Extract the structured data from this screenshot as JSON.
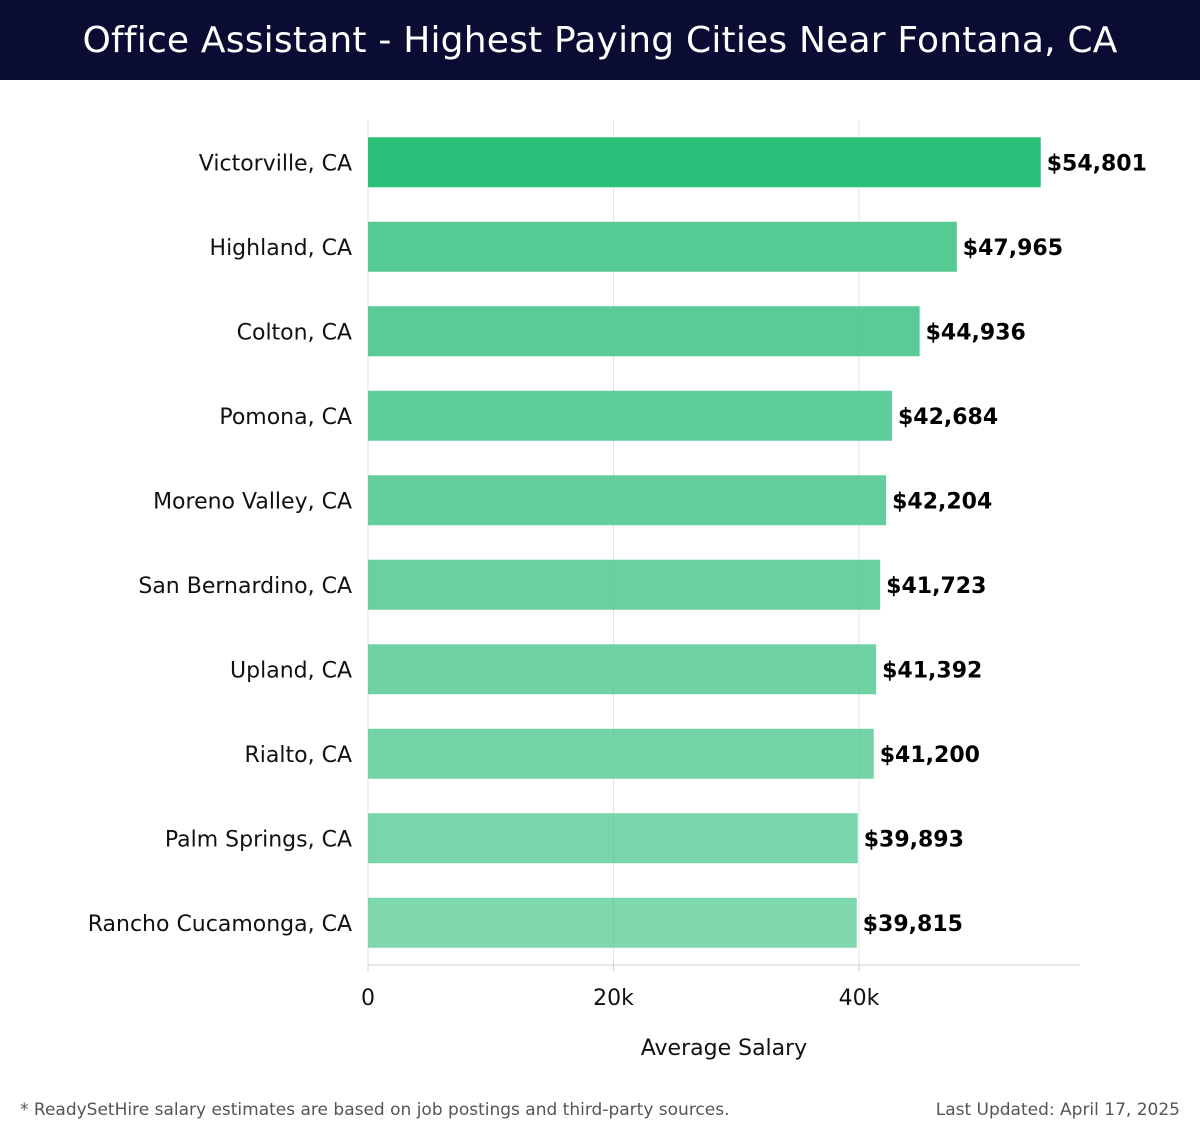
{
  "header": {
    "title": "Office Assistant - Highest Paying Cities Near Fontana, CA"
  },
  "chart_data": {
    "type": "bar",
    "orientation": "horizontal",
    "categories": [
      "Victorville, CA",
      "Highland, CA",
      "Colton, CA",
      "Pomona, CA",
      "Moreno Valley, CA",
      "San Bernardino, CA",
      "Upland, CA",
      "Rialto, CA",
      "Palm Springs, CA",
      "Rancho Cucamonga, CA"
    ],
    "values": [
      54801,
      47965,
      44936,
      42684,
      42204,
      41723,
      41392,
      41200,
      39893,
      39815
    ],
    "value_labels": [
      "$54,801",
      "$47,965",
      "$44,936",
      "$42,684",
      "$42,204",
      "$41,723",
      "$41,392",
      "$41,200",
      "$39,893",
      "$39,815"
    ],
    "xlabel": "Average Salary",
    "ylabel": "",
    "xlim": [
      0,
      58000
    ],
    "xticks": [
      0,
      20000,
      40000
    ],
    "xtick_labels": [
      "0",
      "20k",
      "40k"
    ],
    "grid": true,
    "colors": {
      "top_bar": "#2bbf79",
      "bar": "#4fc890",
      "gridline": "#e2e2e2",
      "axis": "#cccccc"
    }
  },
  "footer": {
    "note": "* ReadySetHire salary estimates are based on job postings and third-party sources.",
    "updated": "Last Updated: April 17, 2025"
  }
}
